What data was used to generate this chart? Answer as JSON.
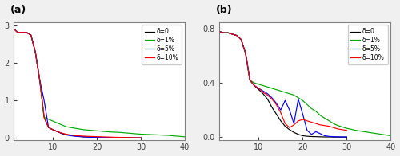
{
  "panel_a": {
    "title": "(a)",
    "xlim": [
      1,
      40
    ],
    "ylim": [
      -0.05,
      3.1
    ],
    "yticks": [
      0,
      1,
      2,
      3
    ],
    "xticks": [
      10,
      20,
      30,
      40
    ],
    "delta0": {
      "x": [
        1,
        2,
        3,
        4,
        5,
        6,
        7,
        8,
        9,
        10,
        11,
        12,
        13,
        14,
        15,
        16,
        17,
        18,
        19,
        20,
        21,
        22,
        23,
        24,
        25,
        26,
        27,
        28,
        29,
        30
      ],
      "y": [
        2.93,
        2.82,
        2.82,
        2.82,
        2.75,
        2.3,
        1.55,
        0.55,
        0.28,
        0.22,
        0.17,
        0.12,
        0.09,
        0.07,
        0.055,
        0.04,
        0.03,
        0.025,
        0.02,
        0.015,
        0.01,
        0.008,
        0.006,
        0.005,
        0.004,
        0.003,
        0.002,
        0.001,
        0.001,
        0.0
      ],
      "color": "#000000"
    },
    "delta1": {
      "x": [
        1,
        2,
        3,
        4,
        5,
        6,
        7,
        8,
        9,
        10,
        11,
        12,
        13,
        14,
        15,
        16,
        17,
        18,
        19,
        20,
        21,
        22,
        23,
        24,
        25,
        26,
        27,
        28,
        29,
        30,
        31,
        32,
        33,
        34,
        35,
        36,
        37,
        38,
        39,
        40
      ],
      "y": [
        2.93,
        2.82,
        2.82,
        2.82,
        2.75,
        2.3,
        1.55,
        0.55,
        0.5,
        0.45,
        0.4,
        0.35,
        0.3,
        0.28,
        0.26,
        0.24,
        0.22,
        0.21,
        0.2,
        0.19,
        0.18,
        0.17,
        0.16,
        0.155,
        0.15,
        0.14,
        0.13,
        0.12,
        0.11,
        0.1,
        0.095,
        0.09,
        0.085,
        0.08,
        0.075,
        0.07,
        0.06,
        0.05,
        0.04,
        0.03
      ],
      "color": "#00aa00"
    },
    "delta5": {
      "x": [
        1,
        2,
        3,
        4,
        5,
        6,
        7,
        8,
        9,
        10,
        11,
        12,
        13,
        14,
        15,
        16,
        17,
        18,
        19,
        20,
        21,
        22,
        23,
        24,
        25,
        26,
        27,
        28,
        29,
        30
      ],
      "y": [
        2.93,
        2.82,
        2.82,
        2.82,
        2.75,
        2.3,
        1.55,
        1.0,
        0.28,
        0.22,
        0.17,
        0.12,
        0.08,
        0.06,
        0.045,
        0.035,
        0.028,
        0.022,
        0.018,
        0.015,
        0.012,
        0.01,
        0.008,
        0.007,
        0.006,
        0.005,
        0.004,
        0.003,
        0.002,
        0.001
      ],
      "color": "#0000ff"
    },
    "delta10": {
      "x": [
        1,
        2,
        3,
        4,
        5,
        6,
        7,
        8,
        9,
        10,
        11,
        12,
        13,
        14,
        15,
        16,
        17,
        18,
        19,
        20,
        21,
        22,
        23,
        24,
        25,
        26,
        27,
        28,
        29,
        30
      ],
      "y": [
        2.93,
        2.82,
        2.82,
        2.82,
        2.75,
        2.3,
        1.55,
        0.55,
        0.28,
        0.22,
        0.17,
        0.13,
        0.1,
        0.08,
        0.065,
        0.055,
        0.048,
        0.042,
        0.038,
        0.034,
        0.03,
        0.026,
        0.022,
        0.018,
        0.015,
        0.012,
        0.01,
        0.008,
        0.006,
        0.004
      ],
      "color": "#ff0000"
    }
  },
  "panel_b": {
    "title": "(b)",
    "xlim": [
      1,
      40
    ],
    "ylim": [
      -0.02,
      0.85
    ],
    "yticks": [
      0,
      0.4,
      0.8
    ],
    "xticks": [
      10,
      20,
      30,
      40
    ],
    "delta0": {
      "x": [
        1,
        2,
        3,
        4,
        5,
        6,
        7,
        8,
        9,
        10,
        11,
        12,
        13,
        14,
        15,
        16,
        17,
        18,
        19,
        20,
        21,
        22,
        23,
        24,
        25,
        26,
        27,
        28,
        29,
        30
      ],
      "y": [
        0.78,
        0.77,
        0.77,
        0.76,
        0.75,
        0.72,
        0.62,
        0.42,
        0.38,
        0.35,
        0.32,
        0.28,
        0.22,
        0.17,
        0.12,
        0.08,
        0.055,
        0.035,
        0.02,
        0.01,
        0.006,
        0.004,
        0.003,
        0.002,
        0.001,
        0.001,
        0.0,
        0.0,
        0.0,
        0.0
      ],
      "color": "#000000"
    },
    "delta1": {
      "x": [
        1,
        2,
        3,
        4,
        5,
        6,
        7,
        8,
        9,
        10,
        11,
        12,
        13,
        14,
        15,
        16,
        17,
        18,
        19,
        20,
        21,
        22,
        23,
        24,
        25,
        26,
        27,
        28,
        29,
        30,
        31,
        32,
        33,
        34,
        35,
        36,
        37,
        38,
        39,
        40
      ],
      "y": [
        0.78,
        0.77,
        0.77,
        0.76,
        0.75,
        0.72,
        0.62,
        0.42,
        0.4,
        0.39,
        0.38,
        0.37,
        0.36,
        0.35,
        0.34,
        0.33,
        0.32,
        0.31,
        0.29,
        0.27,
        0.24,
        0.21,
        0.19,
        0.16,
        0.14,
        0.12,
        0.1,
        0.085,
        0.075,
        0.065,
        0.058,
        0.05,
        0.045,
        0.04,
        0.035,
        0.03,
        0.025,
        0.02,
        0.015,
        0.01
      ],
      "color": "#00aa00"
    },
    "delta5": {
      "x": [
        1,
        2,
        3,
        4,
        5,
        6,
        7,
        8,
        9,
        10,
        11,
        12,
        13,
        14,
        15,
        16,
        17,
        18,
        19,
        20,
        21,
        22,
        23,
        24,
        25,
        26,
        27,
        28,
        29,
        30
      ],
      "y": [
        0.78,
        0.77,
        0.77,
        0.76,
        0.75,
        0.72,
        0.62,
        0.42,
        0.38,
        0.36,
        0.34,
        0.32,
        0.29,
        0.25,
        0.2,
        0.27,
        0.2,
        0.1,
        0.28,
        0.17,
        0.05,
        0.02,
        0.04,
        0.025,
        0.01,
        0.005,
        0.003,
        0.002,
        0.001,
        0.001
      ],
      "color": "#0000ff"
    },
    "delta10": {
      "x": [
        1,
        2,
        3,
        4,
        5,
        6,
        7,
        8,
        9,
        10,
        11,
        12,
        13,
        14,
        15,
        16,
        17,
        18,
        19,
        20,
        21,
        22,
        23,
        24,
        25,
        26,
        27,
        28,
        29,
        30
      ],
      "y": [
        0.78,
        0.77,
        0.77,
        0.76,
        0.75,
        0.72,
        0.62,
        0.42,
        0.38,
        0.36,
        0.33,
        0.31,
        0.28,
        0.24,
        0.18,
        0.1,
        0.07,
        0.09,
        0.12,
        0.13,
        0.12,
        0.11,
        0.1,
        0.09,
        0.085,
        0.08,
        0.07,
        0.06,
        0.055,
        0.05
      ],
      "color": "#ff0000"
    }
  },
  "legend_labels": [
    "δ=0",
    "δ=1%",
    "δ=5%",
    "δ=10%"
  ],
  "legend_colors": [
    "#000000",
    "#00aa00",
    "#0000ff",
    "#ff0000"
  ],
  "background_color": "#f0f0f0",
  "axes_bg": "#ffffff"
}
